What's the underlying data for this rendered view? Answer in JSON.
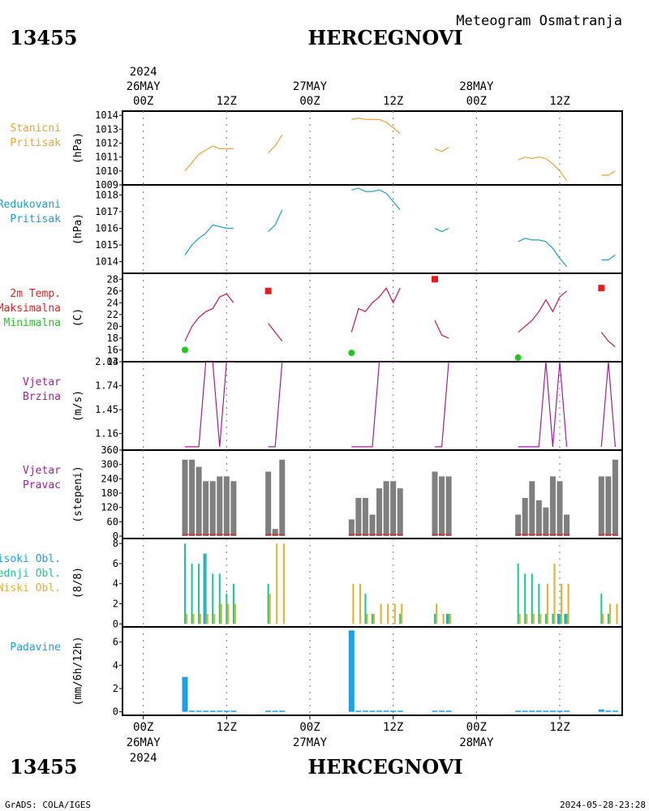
{
  "header": {
    "station_id": "13455",
    "station_name": "HERCEGNOVI",
    "title": "Meteogram Osmatranja"
  },
  "time_axis": {
    "labels_hours": [
      {
        "t": 0,
        "text": "00Z"
      },
      {
        "t": 12,
        "text": "12Z"
      },
      {
        "t": 24,
        "text": "00Z"
      },
      {
        "t": 36,
        "text": "12Z"
      },
      {
        "t": 48,
        "text": "00Z"
      },
      {
        "t": 60,
        "text": "12Z"
      }
    ],
    "date_labels": [
      {
        "t": 0,
        "text": "26MAY"
      },
      {
        "t": 24,
        "text": "27MAY"
      },
      {
        "t": 48,
        "text": "28MAY"
      }
    ],
    "year": "2024"
  },
  "footer": {
    "left": "GrADS: COLA/IGES",
    "right": "2024-05-28-23:28"
  },
  "colors": {
    "pressure": "#e6a532",
    "reduced": "#1aa0c8",
    "tmax": "#e61e1e",
    "tmin": "#1ec81e",
    "temp_line": "#c8145a",
    "wind": "#a01ea0",
    "bar_gray": "#7f7f7f",
    "high_cloud": "#1ea0e6",
    "mid_cloud": "#1ec88c",
    "low_cloud": "#e6af2d",
    "precip": "#1ea0e6"
  },
  "chart_data": [
    {
      "type": "line",
      "id": "stanicni",
      "label_lines": [
        "Stanicni",
        "Pritisak"
      ],
      "label_color": "#e6a532",
      "ylabel": "(hPa)",
      "ylim": [
        1009,
        1014.3
      ],
      "yticks": [
        1009,
        1010,
        1011,
        1012,
        1013,
        1014
      ],
      "series": [
        {
          "color": "#e6a532",
          "segments": [
            [
              [
                6,
                1010.0
              ],
              [
                7,
                1010.6
              ],
              [
                8,
                1011.2
              ],
              [
                9,
                1011.5
              ],
              [
                10,
                1011.8
              ],
              [
                11,
                1011.6
              ],
              [
                12,
                1011.6
              ],
              [
                13,
                1011.6
              ]
            ],
            [
              [
                18,
                1011.3
              ],
              [
                19,
                1011.8
              ],
              [
                20,
                1012.6
              ]
            ],
            [
              [
                30,
                1013.7
              ],
              [
                31,
                1013.8
              ],
              [
                32,
                1013.7
              ],
              [
                33,
                1013.7
              ],
              [
                34,
                1013.7
              ],
              [
                35,
                1013.5
              ],
              [
                36,
                1013.1
              ],
              [
                37,
                1012.7
              ]
            ],
            [
              [
                42,
                1011.6
              ],
              [
                43,
                1011.4
              ],
              [
                44,
                1011.7
              ]
            ],
            [
              [
                54,
                1010.8
              ],
              [
                55,
                1011.0
              ],
              [
                56,
                1010.9
              ],
              [
                57,
                1011.0
              ],
              [
                58,
                1010.9
              ],
              [
                59,
                1010.5
              ],
              [
                60,
                1010.0
              ],
              [
                61,
                1009.3
              ]
            ],
            [
              [
                66,
                1009.7
              ],
              [
                67,
                1009.7
              ],
              [
                68,
                1010.0
              ]
            ]
          ]
        }
      ]
    },
    {
      "type": "line",
      "id": "redukovani",
      "label_lines": [
        "Redukovani",
        "Pritisak"
      ],
      "label_color": "#1aa0c8",
      "ylabel": "(hPa)",
      "ylim": [
        1013.3,
        1018.6
      ],
      "yticks": [
        1014,
        1015,
        1016,
        1017,
        1018
      ],
      "series": [
        {
          "color": "#1aa0c8",
          "segments": [
            [
              [
                6,
                1014.4
              ],
              [
                7,
                1015.0
              ],
              [
                8,
                1015.4
              ],
              [
                9,
                1015.7
              ],
              [
                10,
                1016.2
              ],
              [
                11,
                1016.1
              ],
              [
                12,
                1016.0
              ],
              [
                13,
                1016.0
              ]
            ],
            [
              [
                18,
                1015.8
              ],
              [
                19,
                1016.2
              ],
              [
                20,
                1017.1
              ]
            ],
            [
              [
                30,
                1018.3
              ],
              [
                31,
                1018.4
              ],
              [
                32,
                1018.2
              ],
              [
                33,
                1018.2
              ],
              [
                34,
                1018.3
              ],
              [
                35,
                1018.1
              ],
              [
                36,
                1017.6
              ],
              [
                37,
                1017.1
              ]
            ],
            [
              [
                42,
                1016.0
              ],
              [
                43,
                1015.8
              ],
              [
                44,
                1016.0
              ]
            ],
            [
              [
                54,
                1015.2
              ],
              [
                55,
                1015.4
              ],
              [
                56,
                1015.3
              ],
              [
                57,
                1015.3
              ],
              [
                58,
                1015.2
              ],
              [
                59,
                1014.8
              ],
              [
                60,
                1014.2
              ],
              [
                61,
                1013.7
              ]
            ],
            [
              [
                66,
                1014.1
              ],
              [
                67,
                1014.1
              ],
              [
                68,
                1014.4
              ]
            ]
          ]
        }
      ]
    },
    {
      "type": "line",
      "id": "temperatura",
      "label_lines": [
        "2m Temp.",
        "Maksimalna",
        "Minimalna"
      ],
      "label_colors": [
        "#e61e1e",
        "#e61e1e",
        "#1ec81e"
      ],
      "ylabel": "(C)",
      "ylim": [
        14,
        29
      ],
      "yticks": [
        14,
        16,
        18,
        20,
        22,
        24,
        26,
        28
      ],
      "series": [
        {
          "color": "#c8145a",
          "segments": [
            [
              [
                6,
                17.5
              ],
              [
                7,
                20.0
              ],
              [
                8,
                21.5
              ],
              [
                9,
                22.5
              ],
              [
                10,
                23.0
              ],
              [
                11,
                25.0
              ],
              [
                12,
                25.5
              ],
              [
                13,
                24.0
              ]
            ],
            [
              [
                18,
                20.5
              ],
              [
                19,
                19.0
              ],
              [
                20,
                17.5
              ]
            ],
            [
              [
                30,
                19.0
              ],
              [
                31,
                23.0
              ],
              [
                32,
                22.5
              ],
              [
                33,
                24.0
              ],
              [
                34,
                25.0
              ],
              [
                35,
                26.5
              ],
              [
                36,
                24.0
              ],
              [
                37,
                26.5
              ]
            ],
            [
              [
                42,
                21.0
              ],
              [
                43,
                18.5
              ],
              [
                44,
                18.0
              ]
            ],
            [
              [
                54,
                19.0
              ],
              [
                55,
                20.0
              ],
              [
                56,
                21.0
              ],
              [
                57,
                22.5
              ],
              [
                58,
                24.5
              ],
              [
                59,
                22.5
              ],
              [
                60,
                25.0
              ],
              [
                61,
                26.0
              ]
            ],
            [
              [
                66,
                19.0
              ],
              [
                67,
                17.5
              ],
              [
                68,
                16.5
              ]
            ]
          ]
        }
      ],
      "tmax_points": [
        [
          18,
          26.0
        ],
        [
          42,
          28.0
        ],
        [
          66,
          26.5
        ]
      ],
      "tmin_points": [
        [
          6,
          16.0
        ],
        [
          30,
          15.5
        ],
        [
          54,
          14.7
        ]
      ]
    },
    {
      "type": "line",
      "id": "vjetar_brzina",
      "label_lines": [
        "Vjetar",
        "Brzina"
      ],
      "label_color": "#a01ea0",
      "ylabel": "(m/s)",
      "ylim": [
        0.96,
        2.03
      ],
      "yticks_text": [
        "1.16",
        "1.45",
        "1.74",
        "2.03"
      ],
      "yticks": [
        1.16,
        1.45,
        1.74,
        2.03
      ],
      "series": [
        {
          "color": "#a01ea0",
          "segments": [
            [
              [
                6,
                1.0
              ],
              [
                7,
                1.0
              ],
              [
                8,
                1.0
              ],
              [
                9,
                2.03
              ],
              [
                10,
                2.03
              ],
              [
                11,
                1.0
              ],
              [
                12,
                2.03
              ],
              [
                13,
                2.03
              ]
            ],
            [
              [
                18,
                1.0
              ],
              [
                19,
                1.0
              ],
              [
                20,
                2.03
              ]
            ],
            [
              [
                30,
                1.0
              ],
              [
                31,
                1.0
              ],
              [
                32,
                1.0
              ],
              [
                33,
                1.0
              ],
              [
                34,
                2.03
              ],
              [
                35,
                2.03
              ],
              [
                36,
                2.03
              ],
              [
                37,
                2.03
              ]
            ],
            [
              [
                42,
                1.0
              ],
              [
                43,
                1.0
              ],
              [
                44,
                2.03
              ]
            ],
            [
              [
                54,
                1.0
              ],
              [
                55,
                1.0
              ],
              [
                56,
                1.0
              ],
              [
                57,
                1.0
              ],
              [
                58,
                2.03
              ],
              [
                59,
                1.0
              ],
              [
                60,
                2.03
              ],
              [
                61,
                1.0
              ]
            ],
            [
              [
                66,
                1.0
              ],
              [
                67,
                2.03
              ],
              [
                68,
                1.0
              ]
            ]
          ]
        }
      ]
    },
    {
      "type": "bar",
      "id": "vjetar_pravac",
      "label_lines": [
        "Vjetar",
        "Pravac"
      ],
      "label_color": "#a01ea0",
      "ylabel": "(stepeni)",
      "ylim": [
        -10,
        360
      ],
      "yticks": [
        0,
        60,
        120,
        180,
        240,
        300,
        360
      ],
      "bar_color": "#7f7f7f",
      "x": [
        6,
        7,
        8,
        9,
        10,
        11,
        12,
        13,
        18,
        19,
        20,
        30,
        31,
        32,
        33,
        34,
        35,
        36,
        37,
        42,
        43,
        44,
        54,
        55,
        56,
        57,
        58,
        59,
        60,
        61,
        66,
        67,
        68
      ],
      "values": [
        320,
        320,
        290,
        230,
        230,
        250,
        250,
        230,
        270,
        30,
        320,
        70,
        160,
        160,
        90,
        200,
        230,
        230,
        200,
        270,
        250,
        250,
        90,
        160,
        230,
        150,
        120,
        250,
        230,
        90,
        250,
        250,
        320
      ],
      "calm_line_color": "#e61e1e"
    },
    {
      "type": "bar",
      "id": "oblaci",
      "label_lines": [
        "Visoki Obl.",
        "Srednji Obl.",
        "Niski Obl."
      ],
      "label_colors": [
        "#1ea0e6",
        "#1ec88c",
        "#e6af2d"
      ],
      "ylabel": "(8/8)",
      "ylim": [
        -0.3,
        8.5
      ],
      "yticks": [
        0,
        2,
        4,
        6,
        8
      ],
      "x": [
        6,
        7,
        8,
        9,
        10,
        11,
        12,
        13,
        18,
        19,
        20,
        30,
        31,
        32,
        33,
        34,
        35,
        36,
        37,
        42,
        43,
        44,
        54,
        55,
        56,
        57,
        58,
        59,
        60,
        61,
        66,
        67,
        68
      ],
      "series": [
        {
          "name": "Visoki Obl.",
          "color": "#1ea0e6",
          "values": [
            0,
            0,
            0,
            7,
            0,
            0,
            0,
            0,
            0,
            0,
            0,
            0,
            0,
            0,
            0,
            0,
            0,
            0,
            0,
            0,
            0,
            1,
            0,
            0,
            0,
            0,
            0,
            0,
            1,
            1,
            0,
            0,
            0
          ]
        },
        {
          "name": "Srednji Obl.",
          "color": "#1ec88c",
          "values": [
            8,
            6,
            6,
            7,
            5,
            5,
            3,
            4,
            4,
            0,
            0,
            0,
            0,
            3,
            1,
            0,
            0,
            0,
            1,
            1,
            0,
            1,
            6,
            5,
            5,
            4,
            1,
            1,
            1,
            1,
            3,
            1,
            0
          ]
        },
        {
          "name": "Niski Obl.",
          "color": "#e6af2d",
          "values": [
            1,
            1,
            1,
            1,
            1,
            2,
            2,
            2,
            3,
            8,
            8,
            4,
            4,
            1,
            1,
            2,
            2,
            2,
            2,
            2,
            1,
            1,
            1,
            1,
            1,
            1,
            4,
            6,
            4,
            4,
            1,
            2,
            2
          ]
        }
      ]
    },
    {
      "type": "bar",
      "id": "padavine",
      "label_lines": [
        "Padavine"
      ],
      "label_color": "#1ea0e6",
      "ylabel": "(mm/6h/12h)",
      "ylim": [
        -0.3,
        7.3
      ],
      "yticks": [
        0,
        2,
        4,
        6
      ],
      "bar_color": "#1ea0e6",
      "x": [
        6,
        7,
        8,
        9,
        10,
        11,
        12,
        13,
        18,
        19,
        20,
        30,
        31,
        32,
        33,
        34,
        35,
        36,
        37,
        42,
        43,
        44,
        54,
        55,
        56,
        57,
        58,
        59,
        60,
        61,
        66,
        67,
        68
      ],
      "values": [
        3.0,
        0.1,
        0.1,
        0.1,
        0.1,
        0.1,
        0.1,
        0.1,
        0.1,
        0.1,
        0.1,
        7.0,
        0.1,
        0.1,
        0.1,
        0.1,
        0.1,
        0.1,
        0.1,
        0.1,
        0.1,
        0.1,
        0.1,
        0.1,
        0.1,
        0.1,
        0.1,
        0.1,
        0.1,
        0.1,
        0.2,
        0.1,
        0.1
      ]
    }
  ]
}
